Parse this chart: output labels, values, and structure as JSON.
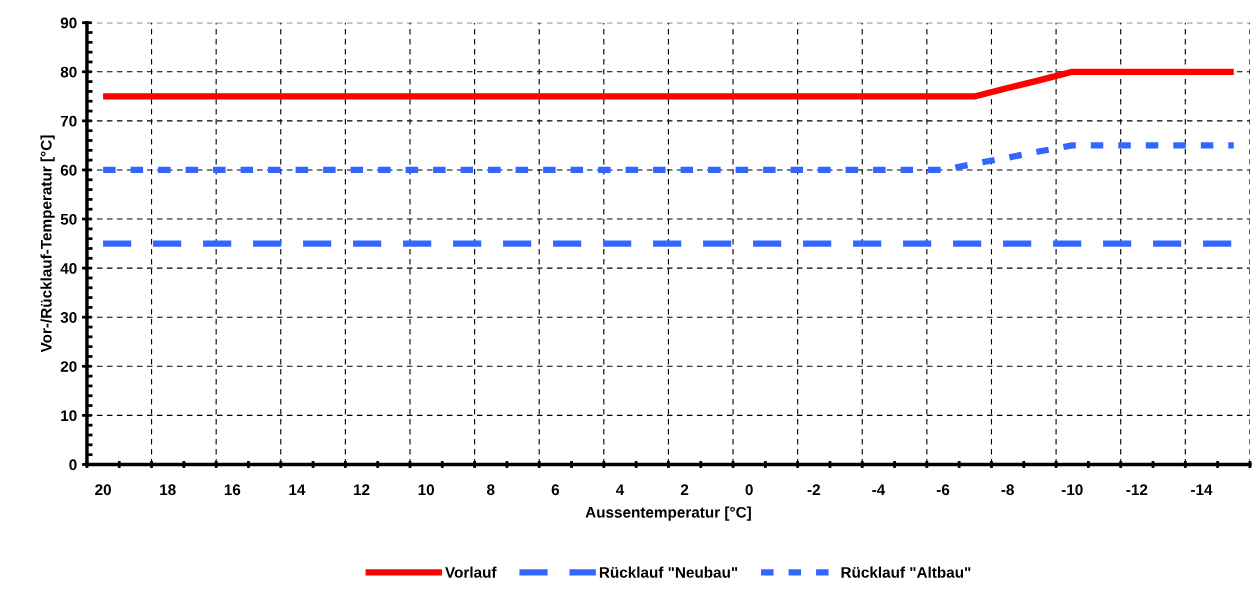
{
  "chart_data": {
    "type": "line",
    "xlabel": "Aussentemperatur [°C]",
    "ylabel": "Vor-/Rücklauf-Temperatur [°C]",
    "categories": [
      "20",
      null,
      "18",
      null,
      "16",
      null,
      "14",
      null,
      "12",
      null,
      "10",
      null,
      "8",
      null,
      "6",
      null,
      "4",
      null,
      "2",
      null,
      "0",
      null,
      "-2",
      null,
      "-4",
      null,
      "-6",
      null,
      "-8",
      null,
      "-10",
      null,
      "-12",
      null,
      "-14",
      null
    ],
    "ylim": [
      0,
      90
    ],
    "yticks": [
      0,
      10,
      20,
      30,
      40,
      50,
      60,
      70,
      80,
      90
    ],
    "grid": true,
    "legend": "bottom",
    "marker": "none",
    "series": [
      {
        "name": "Vorlauf",
        "color": "#ff0000",
        "line_style": "solid",
        "values": [
          75,
          75,
          75,
          75,
          75,
          75,
          75,
          75,
          75,
          75,
          75,
          75,
          75,
          75,
          75,
          75,
          75,
          75,
          75,
          75,
          75,
          75,
          75,
          75,
          75,
          75,
          75,
          75,
          76.7,
          78.3,
          80,
          80,
          80,
          80,
          80,
          80
        ]
      },
      {
        "name": "Rücklauf \"Neubau\"",
        "color": "#3366ff",
        "line_style": "dashed",
        "values": [
          45,
          45,
          45,
          45,
          45,
          45,
          45,
          45,
          45,
          45,
          45,
          45,
          45,
          45,
          45,
          45,
          45,
          45,
          45,
          45,
          45,
          45,
          45,
          45,
          45,
          45,
          45,
          45,
          45,
          45,
          45,
          45,
          45,
          45,
          45,
          45
        ]
      },
      {
        "name": "Rücklauf \"Altbau\"",
        "color": "#3366ff",
        "line_style": "dotted",
        "values": [
          60,
          60,
          60,
          60,
          60,
          60,
          60,
          60,
          60,
          60,
          60,
          60,
          60,
          60,
          60,
          60,
          60,
          60,
          60,
          60,
          60,
          60,
          60,
          60,
          60,
          60,
          60,
          61.3,
          62.5,
          63.8,
          65,
          65,
          65,
          65,
          65,
          65
        ]
      }
    ]
  }
}
